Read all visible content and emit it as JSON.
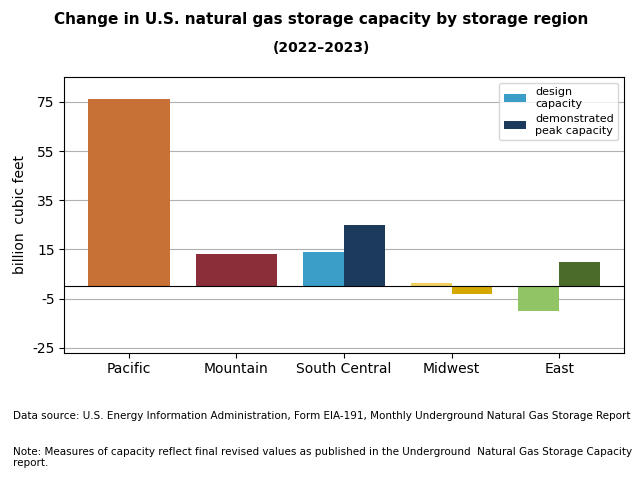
{
  "chart_data": {
    "type": "bar",
    "title": "Change in U.S. natural gas storage capacity by storage region",
    "subtitle": "(2022–2023)",
    "y_label": "billion  cubic feet",
    "categories": [
      "Pacific",
      "Mountain",
      "South Central",
      "Midwest",
      "East"
    ],
    "series": [
      {
        "name": "design\ncapacity",
        "values": [
          76,
          13,
          14,
          1.5,
          -10
        ],
        "colors": [
          "#C87137",
          "#8B2E3A",
          "#3B9EC9",
          "#F0D060",
          "#90C464"
        ]
      },
      {
        "name": "demonstrated\npeak capacity",
        "values": [
          null,
          null,
          25,
          -3,
          10
        ],
        "colors": [
          null,
          null,
          "#1B3A5C",
          "#D4A800",
          "#4A6B2A"
        ]
      }
    ],
    "ylim": [
      -27,
      85
    ],
    "yticks": [
      -25,
      -5,
      15,
      35,
      55,
      75
    ],
    "grid": true,
    "legend": "upper right",
    "annotations": [
      "Data source: U.S. Energy Information Administration, Form EIA-191, Monthly Underground Natural Gas Storage Report",
      "Note: Measures of capacity reflect final revised values as published in the Underground  Natural Gas Storage Capacity report."
    ]
  }
}
